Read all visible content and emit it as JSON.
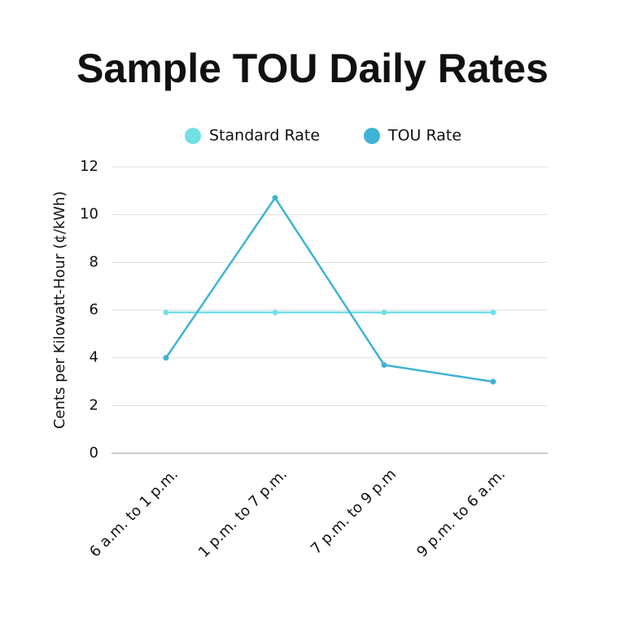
{
  "chart_data": {
    "type": "line",
    "title": "Sample TOU Daily Rates",
    "y_label": "Cents per Kilowatt-Hour (¢/kWh)",
    "categories": [
      "6 a.m. to 1 p.m.",
      "1 p.m. to 7 p.m.",
      "7 p.m. to 9 p.m",
      "9 p.m. to 6 a.m."
    ],
    "series": [
      {
        "name": "Standard Rate",
        "color": "#72e0e6",
        "values": [
          5.9,
          5.9,
          5.9,
          5.9
        ]
      },
      {
        "name": "TOU Rate",
        "color": "#3fb3d4",
        "values": [
          4,
          10.7,
          3.7,
          3.0
        ]
      }
    ],
    "ylim": [
      0,
      12
    ],
    "yticks": [
      0,
      2,
      4,
      6,
      8,
      10,
      12
    ],
    "grid": true,
    "legend": "top"
  }
}
